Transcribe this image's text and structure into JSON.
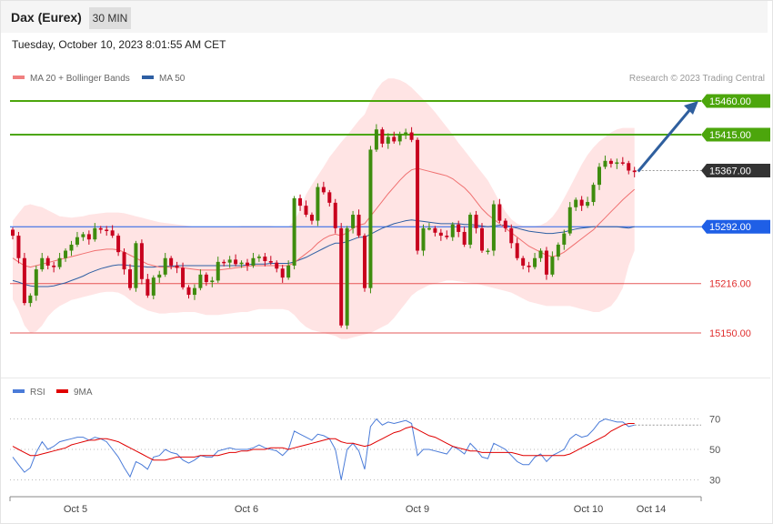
{
  "header": {
    "title": "Dax (Eurex)",
    "interval": "30 MIN"
  },
  "timestamp": "Tuesday, October 10, 2023 8:01:55 AM CET",
  "legend": [
    {
      "label": "MA 20 + Bollinger Bands",
      "color": "#f08080"
    },
    {
      "label": "MA 50",
      "color": "#2e5fa3"
    }
  ],
  "credit": "Research © 2023 Trading Central",
  "rsi_legend": [
    {
      "label": "RSI",
      "color": "#4a7bd8"
    },
    {
      "label": "9MA",
      "color": "#e00000"
    }
  ],
  "chart_data": [
    {
      "type": "candlestick",
      "title": "",
      "ylim": [
        15120,
        15500
      ],
      "x_labels": [
        "Oct 5",
        "Oct 6",
        "Oct 9",
        "Oct 10",
        "Oct 14"
      ],
      "levels": [
        {
          "value": 15460.0,
          "label": "15460.00",
          "color": "#4ca60c",
          "kind": "resistance"
        },
        {
          "value": 15415.0,
          "label": "15415.00",
          "color": "#4ca60c",
          "kind": "resistance"
        },
        {
          "value": 15367.0,
          "label": "15367.00",
          "color": "#333333",
          "kind": "last"
        },
        {
          "value": 15292.0,
          "label": "15292.00",
          "color": "#1f5fe6",
          "kind": "pivot"
        },
        {
          "value": 15216.0,
          "label": "15216.00",
          "color": "#e03030",
          "kind": "support"
        },
        {
          "value": 15150.0,
          "label": "15150.00",
          "color": "#e03030",
          "kind": "support"
        }
      ],
      "closes": [
        15280,
        15250,
        15190,
        15200,
        15235,
        15250,
        15240,
        15238,
        15250,
        15260,
        15268,
        15278,
        15282,
        15275,
        15290,
        15288,
        15287,
        15280,
        15258,
        15235,
        15210,
        15270,
        15222,
        15200,
        15224,
        15228,
        15250,
        15240,
        15237,
        15211,
        15201,
        15210,
        15228,
        15218,
        15220,
        15245,
        15244,
        15248,
        15242,
        15244,
        15240,
        15250,
        15252,
        15246,
        15244,
        15236,
        15224,
        15240,
        15330,
        15320,
        15308,
        15300,
        15345,
        15338,
        15324,
        15290,
        15160,
        15290,
        15308,
        15280,
        15210,
        15395,
        15422,
        15403,
        15412,
        15406,
        15416,
        15418,
        15408,
        15260,
        15290,
        15290,
        15284,
        15280,
        15278,
        15295,
        15285,
        15268,
        15308,
        15290,
        15260,
        15260,
        15322,
        15300,
        15290,
        15270,
        15250,
        15240,
        15238,
        15250,
        15260,
        15228,
        15252,
        15268,
        15283,
        15318,
        15328,
        15320,
        15325,
        15348,
        15372,
        15380,
        15376,
        15378,
        15377,
        15367,
        15365
      ],
      "ma20": [
        15250,
        15245,
        15240,
        15238,
        15240,
        15242,
        15244,
        15246,
        15248,
        15250,
        15252,
        15254,
        15256,
        15258,
        15260,
        15261,
        15262,
        15262,
        15261,
        15258,
        15254,
        15250,
        15246,
        15242,
        15240,
        15238,
        15238,
        15238,
        15238,
        15237,
        15236,
        15235,
        15234,
        15234,
        15234,
        15234,
        15235,
        15236,
        15237,
        15238,
        15239,
        15240,
        15240,
        15240,
        15240,
        15240,
        15240,
        15240,
        15244,
        15250,
        15256,
        15262,
        15270,
        15276,
        15280,
        15282,
        15280,
        15284,
        15290,
        15294,
        15296,
        15306,
        15316,
        15326,
        15336,
        15345,
        15354,
        15362,
        15368,
        15370,
        15368,
        15366,
        15364,
        15362,
        15360,
        15356,
        15350,
        15344,
        15336,
        15326,
        15316,
        15308,
        15302,
        15296,
        15290,
        15284,
        15278,
        15272,
        15266,
        15262,
        15258,
        15254,
        15252,
        15254,
        15258,
        15264,
        15270,
        15276,
        15282,
        15288,
        15296,
        15304,
        15312,
        15320,
        15328,
        15335,
        15342
      ],
      "ma50": [
        15220,
        15218,
        15215,
        15213,
        15212,
        15212,
        15212,
        15213,
        15215,
        15217,
        15220,
        15223,
        15226,
        15230,
        15233,
        15236,
        15238,
        15240,
        15241,
        15241,
        15240,
        15239,
        15239,
        15238,
        15238,
        15239,
        15239,
        15239,
        15240,
        15240,
        15240,
        15240,
        15240,
        15240,
        15240,
        15240,
        15240,
        15240,
        15240,
        15240,
        15241,
        15242,
        15242,
        15242,
        15243,
        15243,
        15243,
        15243,
        15245,
        15248,
        15251,
        15255,
        15259,
        15263,
        15267,
        15270,
        15270,
        15272,
        15275,
        15278,
        15278,
        15282,
        15286,
        15290,
        15293,
        15296,
        15298,
        15300,
        15301,
        15300,
        15299,
        15298,
        15297,
        15296,
        15296,
        15296,
        15296,
        15295,
        15295,
        15294,
        15293,
        15292,
        15293,
        15294,
        15294,
        15292,
        15290,
        15288,
        15286,
        15285,
        15284,
        15283,
        15283,
        15284,
        15285,
        15287,
        15289,
        15290,
        15291,
        15292,
        15292,
        15292,
        15292,
        15292,
        15291,
        15290,
        15292
      ],
      "bb_upper": [
        15300,
        15310,
        15320,
        15322,
        15320,
        15318,
        15314,
        15310,
        15306,
        15305,
        15304,
        15305,
        15306,
        15308,
        15309,
        15310,
        15311,
        15311,
        15311,
        15310,
        15308,
        15306,
        15304,
        15302,
        15300,
        15298,
        15297,
        15296,
        15295,
        15294,
        15293,
        15292,
        15292,
        15292,
        15292,
        15292,
        15292,
        15292,
        15292,
        15293,
        15293,
        15293,
        15293,
        15293,
        15293,
        15292,
        15292,
        15292,
        15300,
        15315,
        15335,
        15348,
        15360,
        15372,
        15385,
        15395,
        15405,
        15414,
        15424,
        15434,
        15442,
        15460,
        15475,
        15485,
        15490,
        15490,
        15488,
        15484,
        15478,
        15470,
        15462,
        15454,
        15445,
        15435,
        15425,
        15415,
        15404,
        15394,
        15384,
        15374,
        15364,
        15354,
        15340,
        15325,
        15312,
        15302,
        15296,
        15293,
        15293,
        15293,
        15294,
        15298,
        15305,
        15316,
        15330,
        15345,
        15360,
        15375,
        15388,
        15398,
        15406,
        15412,
        15418,
        15422,
        15424,
        15424,
        15424
      ],
      "bb_lower": [
        15195,
        15180,
        15160,
        15150,
        15152,
        15160,
        15172,
        15180,
        15186,
        15190,
        15194,
        15196,
        15198,
        15200,
        15202,
        15204,
        15205,
        15205,
        15204,
        15200,
        15194,
        15188,
        15184,
        15180,
        15178,
        15176,
        15176,
        15177,
        15177,
        15178,
        15178,
        15178,
        15176,
        15174,
        15174,
        15174,
        15175,
        15176,
        15177,
        15178,
        15178,
        15180,
        15182,
        15182,
        15182,
        15182,
        15182,
        15180,
        15174,
        15165,
        15158,
        15154,
        15152,
        15150,
        15148,
        15146,
        15142,
        15142,
        15144,
        15146,
        15148,
        15150,
        15154,
        15158,
        15162,
        15170,
        15180,
        15190,
        15200,
        15206,
        15210,
        15214,
        15216,
        15218,
        15220,
        15220,
        15219,
        15218,
        15217,
        15216,
        15214,
        15212,
        15210,
        15208,
        15206,
        15204,
        15200,
        15196,
        15192,
        15190,
        15188,
        15186,
        15186,
        15186,
        15186,
        15186,
        15184,
        15182,
        15180,
        15178,
        15178,
        15182,
        15186,
        15196,
        15210,
        15240,
        15260
      ]
    },
    {
      "type": "line",
      "title": "",
      "ylim": [
        20,
        80
      ],
      "y_ticks": [
        "70",
        "50",
        "30"
      ],
      "x_labels": [
        "Oct 5",
        "Oct 6",
        "Oct 9",
        "Oct 10",
        "Oct 14"
      ],
      "series": [
        {
          "name": "RSI",
          "color": "#4a7bd8",
          "values": [
            45,
            40,
            35,
            38,
            48,
            55,
            50,
            52,
            55,
            56,
            57,
            58,
            58,
            56,
            58,
            57,
            55,
            50,
            45,
            38,
            32,
            42,
            40,
            37,
            45,
            46,
            50,
            48,
            47,
            43,
            41,
            43,
            46,
            45,
            45,
            49,
            50,
            51,
            50,
            50,
            50,
            51,
            53,
            51,
            50,
            49,
            46,
            50,
            62,
            60,
            58,
            56,
            60,
            59,
            57,
            50,
            30,
            50,
            54,
            49,
            37,
            65,
            70,
            66,
            68,
            67,
            68,
            69,
            67,
            46,
            50,
            50,
            49,
            48,
            47,
            52,
            50,
            47,
            54,
            50,
            45,
            44,
            54,
            52,
            50,
            46,
            42,
            40,
            40,
            45,
            47,
            42,
            46,
            48,
            50,
            57,
            60,
            58,
            59,
            63,
            68,
            70,
            69,
            68,
            68,
            65,
            66
          ]
        },
        {
          "name": "9MA",
          "color": "#e00000",
          "values": [
            52,
            50,
            48,
            46,
            46,
            47,
            48,
            49,
            50,
            51,
            53,
            54,
            55,
            56,
            56,
            57,
            57,
            56,
            55,
            53,
            51,
            49,
            47,
            45,
            43,
            43,
            43,
            44,
            45,
            45,
            45,
            45,
            46,
            46,
            46,
            46,
            47,
            48,
            48,
            49,
            49,
            50,
            50,
            50,
            51,
            51,
            51,
            50,
            51,
            52,
            53,
            54,
            55,
            56,
            57,
            57,
            55,
            54,
            54,
            53,
            52,
            53,
            55,
            57,
            59,
            61,
            62,
            64,
            65,
            63,
            61,
            59,
            58,
            56,
            54,
            52,
            51,
            50,
            49,
            49,
            48,
            48,
            48,
            48,
            48,
            48,
            47,
            46,
            46,
            46,
            46,
            46,
            46,
            46,
            46,
            47,
            49,
            51,
            53,
            55,
            57,
            59,
            62,
            64,
            66,
            67,
            67
          ]
        }
      ]
    }
  ]
}
